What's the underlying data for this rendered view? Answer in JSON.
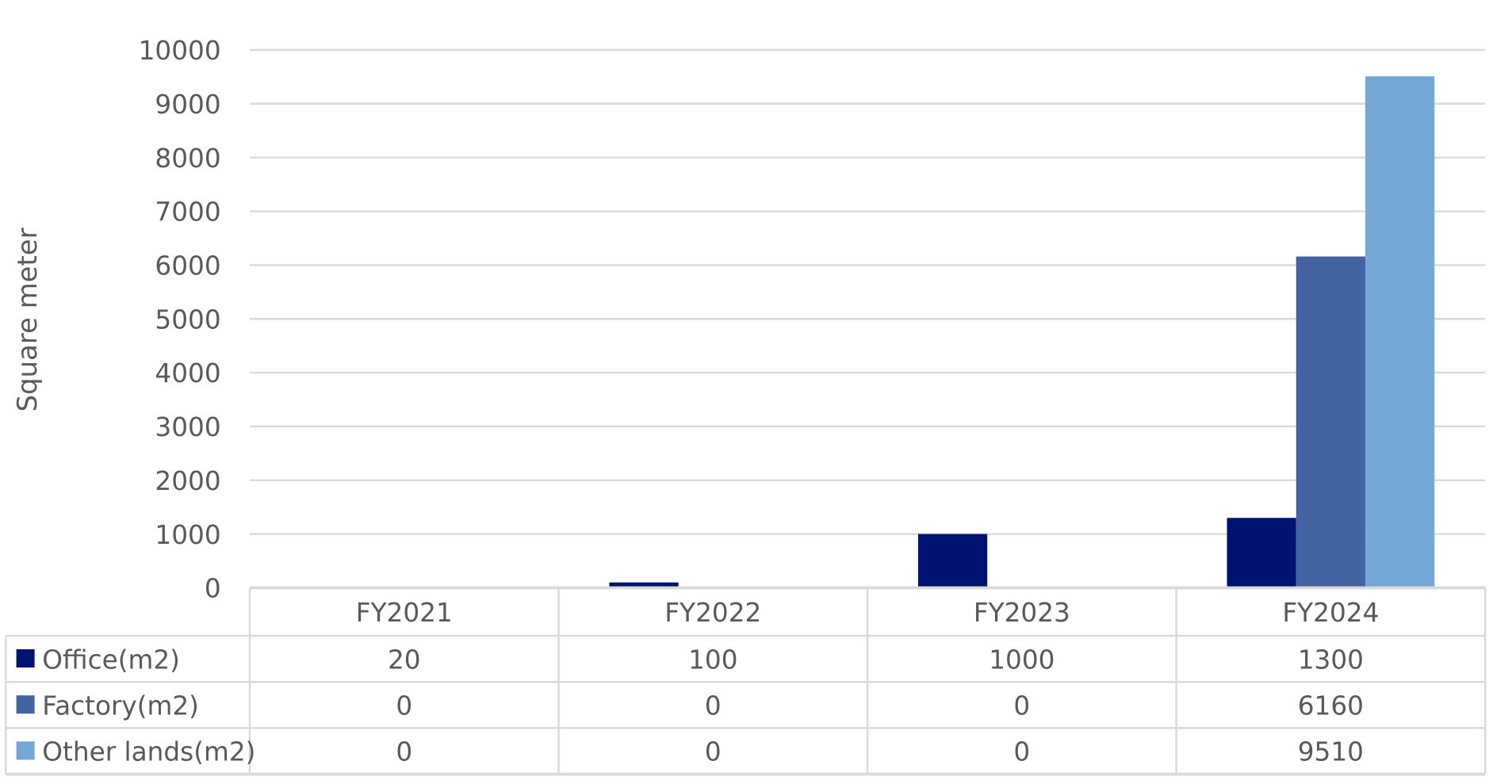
{
  "chart_data": {
    "type": "bar",
    "title": "",
    "xlabel": "",
    "ylabel": "Square meter",
    "ylim": [
      0,
      10000
    ],
    "yticks": [
      0,
      1000,
      2000,
      3000,
      4000,
      5000,
      6000,
      7000,
      8000,
      9000,
      10000
    ],
    "grid": true,
    "legend": "data-table",
    "categories": [
      "FY2021",
      "FY2022",
      "FY2023",
      "FY2024"
    ],
    "series": [
      {
        "name": "Office(m2)",
        "values": [
          20,
          100,
          1000,
          1300
        ],
        "color": "#001270"
      },
      {
        "name": "Factory(m2)",
        "values": [
          0,
          0,
          0,
          6160
        ],
        "color": "#4463A3"
      },
      {
        "name": "Other lands(m2)",
        "values": [
          0,
          0,
          0,
          9510
        ],
        "color": "#75A7D6"
      }
    ]
  }
}
